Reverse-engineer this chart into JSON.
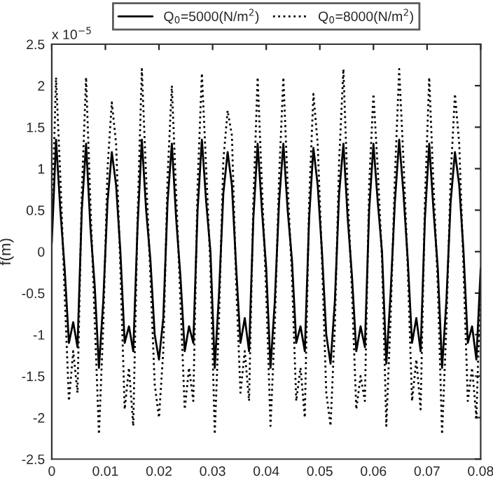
{
  "chart_data": {
    "type": "line",
    "ylabel": "f(m)",
    "annotations": [
      "x 10$^{−5}$"
    ],
    "x": [
      0,
      0.0008,
      0.0016,
      0.0024,
      0.0032,
      0.004,
      0.0048,
      0.0056,
      0.0064,
      0.0072,
      0.008,
      0.0088,
      0.0096,
      0.0104,
      0.0112,
      0.012,
      0.0128,
      0.0136,
      0.0144,
      0.0152,
      0.016,
      0.0168,
      0.0176,
      0.0184,
      0.0192,
      0.02,
      0.0208,
      0.0216,
      0.0224,
      0.0232,
      0.024,
      0.0248,
      0.0256,
      0.0264,
      0.0272,
      0.028,
      0.0288,
      0.0296,
      0.0304,
      0.0312,
      0.032,
      0.0328,
      0.0336,
      0.0344,
      0.0352,
      0.036,
      0.0368,
      0.0376,
      0.0384,
      0.0392,
      0.04,
      0.0408,
      0.0416,
      0.0424,
      0.0432,
      0.044,
      0.0448,
      0.0456,
      0.0464,
      0.0472,
      0.048,
      0.0488,
      0.0496,
      0.0504,
      0.0512,
      0.052,
      0.0528,
      0.0536,
      0.0544,
      0.0552,
      0.056,
      0.0568,
      0.0576,
      0.0584,
      0.0592,
      0.06,
      0.0608,
      0.0616,
      0.0624,
      0.0632,
      0.064,
      0.0648,
      0.0656,
      0.0664,
      0.0672,
      0.068,
      0.0688,
      0.0696,
      0.0704,
      0.0712,
      0.072,
      0.0728,
      0.0736,
      0.0744,
      0.0752,
      0.076,
      0.0768,
      0.0776,
      0.0784,
      0.0792,
      0.08
    ],
    "series": [
      {
        "name": "Q$_{0}$=5000(N/m$^{2}$)",
        "color": "#000000",
        "line_style": "solid",
        "values": [
          0.1,
          1.35,
          0.5,
          -0.2,
          -1.1,
          -0.85,
          -1.15,
          0.5,
          1.3,
          0.3,
          -0.4,
          -1.4,
          -0.6,
          0.6,
          1.2,
          0.8,
          0.0,
          -1.1,
          -0.9,
          -1.2,
          0.3,
          1.35,
          0.5,
          -0.1,
          -1.0,
          -1.3,
          -0.8,
          0.6,
          1.3,
          0.4,
          -0.3,
          -1.2,
          -0.9,
          -1.1,
          0.5,
          1.35,
          0.6,
          0.0,
          -1.4,
          -0.5,
          0.7,
          1.2,
          0.8,
          -0.2,
          -1.1,
          -0.8,
          -1.2,
          0.4,
          1.3,
          0.5,
          -0.2,
          -1.4,
          -0.6,
          0.6,
          1.3,
          0.5,
          -0.1,
          -1.1,
          -0.9,
          -1.2,
          0.4,
          1.25,
          0.8,
          0.0,
          -1.0,
          -1.35,
          -0.6,
          0.7,
          1.3,
          0.4,
          -0.3,
          -1.2,
          -0.9,
          -1.15,
          0.5,
          1.3,
          0.6,
          0.0,
          -1.35,
          -0.5,
          0.6,
          1.35,
          0.7,
          -0.1,
          -1.1,
          -0.8,
          -1.2,
          0.4,
          1.3,
          0.5,
          -0.2,
          -1.4,
          -0.6,
          0.6,
          1.2,
          0.8,
          0.0,
          -1.1,
          -0.9,
          -1.3,
          -0.2
        ]
      },
      {
        "name": "Q$_{0}$=8000(N/m$^{2}$)",
        "color": "#000000",
        "line_style": "dotted",
        "values": [
          0.3,
          2.1,
          0.9,
          -0.5,
          -1.8,
          -1.2,
          -1.7,
          0.7,
          2.1,
          0.6,
          -0.8,
          -2.2,
          -0.9,
          1.0,
          1.8,
          1.3,
          -0.2,
          -1.9,
          -1.4,
          -2.1,
          0.4,
          2.2,
          0.9,
          -0.3,
          -1.6,
          -2.0,
          -1.2,
          0.9,
          2.0,
          0.7,
          -0.6,
          -1.9,
          -1.4,
          -1.8,
          0.8,
          2.15,
          1.0,
          -0.2,
          -2.2,
          -0.8,
          1.1,
          1.7,
          1.4,
          -0.4,
          -1.7,
          -1.2,
          -1.8,
          0.6,
          2.1,
          0.8,
          -0.5,
          -2.1,
          -0.9,
          0.9,
          2.1,
          0.8,
          -0.3,
          -1.8,
          -1.4,
          -2.0,
          0.6,
          1.9,
          1.3,
          -0.1,
          -1.7,
          -2.1,
          -0.9,
          1.1,
          2.2,
          0.7,
          -0.5,
          -1.9,
          -1.5,
          -1.8,
          0.8,
          1.9,
          1.0,
          -0.1,
          -2.1,
          -0.8,
          0.9,
          2.2,
          1.1,
          -0.2,
          -1.8,
          -1.3,
          -1.9,
          0.6,
          2.1,
          0.8,
          -0.4,
          -2.2,
          -0.9,
          0.9,
          1.9,
          1.3,
          -0.2,
          -1.8,
          -1.4,
          -2.0,
          -0.3
        ]
      }
    ],
    "xlim": [
      0,
      0.08
    ],
    "xticks": [
      0,
      0.01,
      0.02,
      0.03,
      0.04,
      0.05,
      0.06,
      0.07,
      0.08
    ],
    "ylim": [
      -2.5,
      2.5
    ],
    "yticks": [
      -2.5,
      -2,
      -1.5,
      -1,
      -0.5,
      0,
      0.5,
      1,
      1.5,
      2,
      2.5
    ],
    "legend": "top",
    "grid": false,
    "marker": "none"
  }
}
